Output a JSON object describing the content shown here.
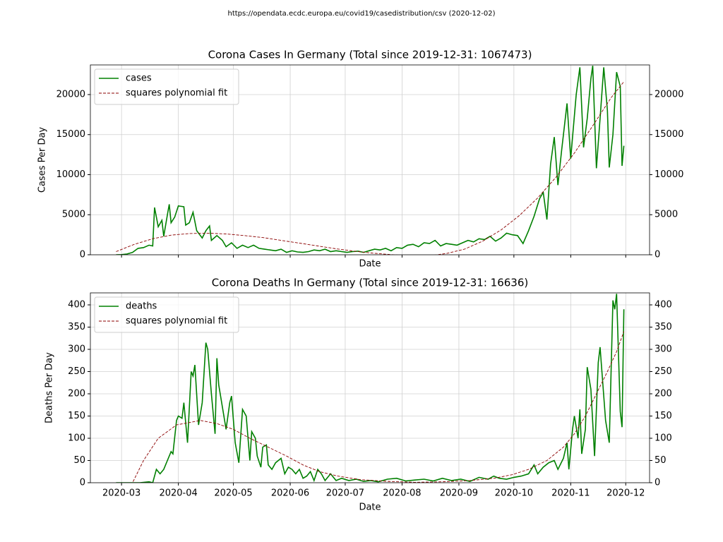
{
  "header": "https://opendata.ecdc.europa.eu/covid19/casedistribution/csv (2020-12-02)",
  "chart_data": [
    {
      "type": "line",
      "title": "Corona Cases In Germany (Total since 2019-12-31: 1067473)",
      "xlabel": "Date",
      "ylabel": "Cases Per Day",
      "xlim": [
        43,
        348
      ],
      "xticks": [
        {
          "value": 60,
          "label": "2020-03"
        },
        {
          "value": 91,
          "label": "2020-04"
        },
        {
          "value": 121,
          "label": "2020-05"
        },
        {
          "value": 152,
          "label": "2020-06"
        },
        {
          "value": 182,
          "label": "2020-07"
        },
        {
          "value": 213,
          "label": "2020-08"
        },
        {
          "value": 244,
          "label": "2020-09"
        },
        {
          "value": 274,
          "label": "2020-10"
        },
        {
          "value": 305,
          "label": "2020-11"
        },
        {
          "value": 335,
          "label": "2020-12"
        }
      ],
      "show_xtick_labels": false,
      "ylim": [
        0,
        23700
      ],
      "yticks": [
        0,
        5000,
        10000,
        15000,
        20000
      ],
      "y2ticks": [
        0,
        5000,
        10000,
        15000,
        20000
      ],
      "grid": true,
      "legend": "upper left",
      "series": [
        {
          "name": "cases",
          "color": "#008000",
          "style": "solid",
          "x": [
            57,
            60,
            63,
            66,
            69,
            72,
            75,
            77,
            78,
            80,
            82,
            83,
            85,
            86,
            87,
            89,
            91,
            94,
            95,
            97,
            99,
            101,
            104,
            106,
            108,
            109,
            112,
            115,
            117,
            120,
            123,
            126,
            129,
            132,
            135,
            138,
            141,
            144,
            147,
            150,
            153,
            156,
            159,
            162,
            165,
            168,
            171,
            174,
            177,
            180,
            183,
            186,
            189,
            192,
            195,
            198,
            201,
            204,
            207,
            210,
            213,
            216,
            219,
            222,
            225,
            228,
            231,
            234,
            237,
            240,
            243,
            246,
            249,
            252,
            255,
            258,
            261,
            264,
            267,
            270,
            273,
            276,
            279,
            282,
            285,
            288,
            290,
            292,
            294,
            296,
            298,
            300,
            303,
            305,
            308,
            310,
            312,
            314,
            316,
            317,
            319,
            321,
            323,
            325,
            326,
            328,
            330,
            332,
            333,
            334
          ],
          "values": [
            0,
            20,
            100,
            300,
            800,
            900,
            1200,
            1100,
            5900,
            3500,
            4300,
            2300,
            5000,
            6300,
            4000,
            4700,
            6100,
            6000,
            3700,
            4000,
            5300,
            3000,
            2100,
            3000,
            3600,
            1800,
            2400,
            1800,
            1000,
            1500,
            800,
            1200,
            900,
            1200,
            800,
            700,
            600,
            500,
            700,
            300,
            500,
            350,
            300,
            400,
            600,
            500,
            700,
            400,
            500,
            400,
            300,
            400,
            450,
            300,
            500,
            700,
            600,
            800,
            500,
            900,
            800,
            1200,
            1300,
            1000,
            1500,
            1400,
            1800,
            1100,
            1400,
            1300,
            1200,
            1500,
            1800,
            1600,
            2000,
            1900,
            2300,
            1700,
            2100,
            2700,
            2500,
            2400,
            1400,
            3000,
            4800,
            7000,
            7800,
            4400,
            11300,
            14700,
            8700,
            13000,
            18900,
            12000,
            20000,
            23400,
            13400,
            17000,
            22000,
            23600,
            10800,
            17000,
            23400,
            18000,
            10900,
            15000,
            22800,
            21000,
            11100,
            13600
          ]
        },
        {
          "name": "squares polynomial fit",
          "color": "#8b0000",
          "style": "dashed",
          "x": [
            57,
            67,
            77,
            87,
            97,
            107,
            117,
            127,
            137,
            147,
            157,
            167,
            177,
            187,
            197,
            207,
            217,
            227,
            237,
            247,
            257,
            267,
            277,
            287,
            297,
            307,
            317,
            327,
            334
          ],
          "values": [
            400,
            1300,
            2000,
            2450,
            2650,
            2700,
            2600,
            2400,
            2150,
            1800,
            1450,
            1100,
            750,
            450,
            200,
            20,
            -120,
            -150,
            150,
            700,
            1700,
            3100,
            4900,
            7100,
            9700,
            12700,
            16100,
            19600,
            21600
          ]
        }
      ]
    },
    {
      "type": "line",
      "title": "Corona Deaths In Germany (Total since 2019-12-31: 16636)",
      "xlabel": "Date",
      "ylabel": "Deaths Per Day",
      "xlim": [
        43,
        348
      ],
      "xticks": [
        {
          "value": 60,
          "label": "2020-03"
        },
        {
          "value": 91,
          "label": "2020-04"
        },
        {
          "value": 121,
          "label": "2020-05"
        },
        {
          "value": 152,
          "label": "2020-06"
        },
        {
          "value": 182,
          "label": "2020-07"
        },
        {
          "value": 213,
          "label": "2020-08"
        },
        {
          "value": 244,
          "label": "2020-09"
        },
        {
          "value": 274,
          "label": "2020-10"
        },
        {
          "value": 305,
          "label": "2020-11"
        },
        {
          "value": 335,
          "label": "2020-12"
        }
      ],
      "show_xtick_labels": true,
      "ylim": [
        0,
        427
      ],
      "yticks": [
        0,
        50,
        100,
        150,
        200,
        250,
        300,
        350,
        400
      ],
      "y2ticks": [
        0,
        50,
        100,
        150,
        200,
        250,
        300,
        350,
        400
      ],
      "grid": true,
      "legend": "upper left",
      "series": [
        {
          "name": "deaths",
          "color": "#008000",
          "style": "solid",
          "x": [
            57,
            60,
            65,
            70,
            75,
            77,
            79,
            81,
            83,
            85,
            87,
            88,
            90,
            91,
            93,
            94,
            96,
            98,
            99,
            100,
            102,
            104,
            106,
            107,
            109,
            111,
            112,
            113,
            115,
            117,
            119,
            120,
            122,
            124,
            126,
            128,
            130,
            131,
            133,
            134,
            136,
            137,
            139,
            140,
            142,
            144,
            147,
            149,
            151,
            153,
            155,
            157,
            159,
            161,
            163,
            165,
            167,
            169,
            171,
            174,
            177,
            180,
            184,
            188,
            192,
            196,
            200,
            205,
            210,
            215,
            220,
            225,
            230,
            235,
            240,
            245,
            250,
            255,
            260,
            263,
            266,
            270,
            274,
            278,
            282,
            285,
            287,
            290,
            293,
            296,
            298,
            301,
            303,
            304,
            306,
            307,
            309,
            310,
            311,
            313,
            314,
            316,
            318,
            320,
            321,
            322,
            324,
            326,
            328,
            329,
            330,
            332,
            333,
            334
          ],
          "values": [
            0,
            0,
            0,
            0,
            2,
            0,
            30,
            20,
            30,
            50,
            70,
            65,
            140,
            150,
            145,
            180,
            90,
            250,
            240,
            265,
            130,
            180,
            315,
            300,
            200,
            110,
            280,
            220,
            170,
            120,
            180,
            195,
            90,
            45,
            165,
            150,
            50,
            115,
            100,
            60,
            35,
            80,
            85,
            40,
            30,
            45,
            55,
            20,
            35,
            30,
            20,
            30,
            10,
            15,
            25,
            5,
            30,
            20,
            5,
            20,
            5,
            10,
            5,
            8,
            3,
            5,
            2,
            8,
            10,
            4,
            6,
            8,
            4,
            10,
            5,
            8,
            3,
            12,
            8,
            15,
            10,
            8,
            12,
            15,
            20,
            40,
            20,
            35,
            45,
            50,
            30,
            55,
            90,
            30,
            120,
            150,
            100,
            165,
            65,
            120,
            260,
            210,
            60,
            270,
            305,
            250,
            140,
            90,
            410,
            390,
            425,
            160,
            125,
            390
          ]
        },
        {
          "name": "squares polynomial fit",
          "color": "#8b0000",
          "style": "dashed",
          "x": [
            57,
            66,
            72,
            80,
            90,
            103,
            112,
            121,
            130,
            140,
            150,
            159,
            168,
            178,
            190,
            205,
            220,
            235,
            250,
            263,
            273,
            282,
            292,
            301,
            307,
            313,
            319,
            325,
            330,
            334
          ],
          "values": [
            -40,
            0,
            50,
            100,
            130,
            140,
            133,
            120,
            100,
            80,
            60,
            40,
            25,
            15,
            7,
            3,
            1,
            2,
            5,
            10,
            18,
            30,
            50,
            80,
            110,
            150,
            200,
            250,
            295,
            340
          ]
        }
      ]
    }
  ]
}
